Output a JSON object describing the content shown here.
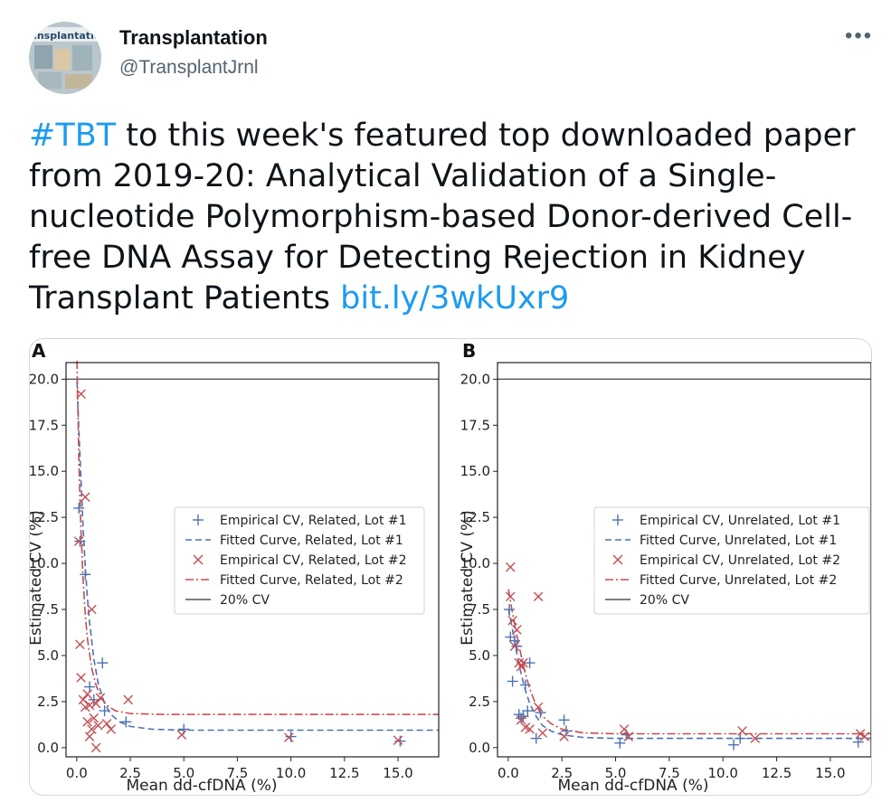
{
  "author": {
    "name": "Transplantation",
    "handle": "@TransplantJrnl",
    "avatar_text": "ransplantatio"
  },
  "tweet": {
    "hashtag": "#TBT",
    "text": " to this week's featured top downloaded paper from 2019-20: Analytical Validation of a Single-nucleotide Polymorphism-based Donor-derived Cell-free DNA Assay for Detecting Rejection in Kidney Transplant Patients ",
    "link": "bit.ly/3wkUxr9"
  },
  "more_label": "•••",
  "colors": {
    "blue": "#4c72b0",
    "red": "#c44e52",
    "gray": "#555555",
    "link": "#1d9bf0"
  },
  "chart_data": [
    {
      "panel": "A",
      "type": "scatter",
      "xlabel": "Mean dd-cfDNA (%)",
      "ylabel": "Estimated CV (%)",
      "xlim": [
        -0.5,
        16.9
      ],
      "ylim": [
        -0.5,
        20.9
      ],
      "xticks": [
        "0.0",
        "2.5",
        "5.0",
        "7.5",
        "10.0",
        "12.5",
        "15.0"
      ],
      "yticks": [
        "0.0",
        "2.5",
        "5.0",
        "7.5",
        "10.0",
        "12.5",
        "15.0",
        "17.5",
        "20.0"
      ],
      "legend": [
        "Empirical CV, Related, Lot #1",
        "Fitted Curve, Related, Lot #1",
        "Empirical CV, Related, Lot #2",
        "Fitted Curve, Related, Lot #2",
        "20% CV"
      ],
      "reference_line": 20,
      "series": [
        {
          "name": "Empirical CV, Related, Lot #1",
          "marker": "plus",
          "points": [
            [
              0.1,
              13.0
            ],
            [
              0.15,
              11.2
            ],
            [
              0.4,
              9.4
            ],
            [
              0.6,
              3.3
            ],
            [
              0.8,
              2.6
            ],
            [
              1.2,
              4.6
            ],
            [
              1.3,
              2.0
            ],
            [
              2.3,
              1.4
            ],
            [
              5.0,
              1.0
            ],
            [
              10.0,
              0.6
            ],
            [
              15.1,
              0.35
            ]
          ]
        },
        {
          "name": "Fitted Curve, Related, Lot #1",
          "kind": "curve",
          "points": [
            [
              0.01,
              19.9
            ],
            [
              0.1,
              17.2
            ],
            [
              0.2,
              14.5
            ],
            [
              0.3,
              11.9
            ],
            [
              0.4,
              9.8
            ],
            [
              0.5,
              8.1
            ],
            [
              0.6,
              6.8
            ],
            [
              0.8,
              4.8
            ],
            [
              1.0,
              3.5
            ],
            [
              1.3,
              2.4
            ],
            [
              1.6,
              1.8
            ],
            [
              2.0,
              1.4
            ],
            [
              2.5,
              1.15
            ],
            [
              3.5,
              1.0
            ],
            [
              5.0,
              0.95
            ],
            [
              8.0,
              0.95
            ],
            [
              12.0,
              0.95
            ],
            [
              16.9,
              0.95
            ]
          ]
        },
        {
          "name": "Empirical CV, Related, Lot #2",
          "marker": "x",
          "points": [
            [
              0.2,
              19.2
            ],
            [
              0.4,
              13.6
            ],
            [
              0.1,
              11.2
            ],
            [
              0.15,
              5.6
            ],
            [
              0.7,
              7.5
            ],
            [
              0.2,
              3.8
            ],
            [
              0.3,
              2.6
            ],
            [
              0.4,
              2.2
            ],
            [
              0.5,
              2.9
            ],
            [
              0.5,
              1.4
            ],
            [
              0.6,
              2.3
            ],
            [
              0.7,
              1.0
            ],
            [
              0.8,
              1.6
            ],
            [
              0.9,
              2.4
            ],
            [
              1.0,
              1.2
            ],
            [
              1.1,
              2.7
            ],
            [
              1.4,
              1.3
            ],
            [
              1.6,
              1.0
            ],
            [
              2.4,
              2.6
            ],
            [
              0.9,
              0.0
            ],
            [
              0.6,
              0.6
            ],
            [
              4.9,
              0.7
            ],
            [
              9.9,
              0.55
            ],
            [
              15.0,
              0.4
            ]
          ]
        },
        {
          "name": "Fitted Curve, Related, Lot #2",
          "kind": "curve",
          "points": [
            [
              0.01,
              21.0
            ],
            [
              0.1,
              15.5
            ],
            [
              0.2,
              11.7
            ],
            [
              0.3,
              9.1
            ],
            [
              0.4,
              7.2
            ],
            [
              0.5,
              5.9
            ],
            [
              0.7,
              4.3
            ],
            [
              0.9,
              3.4
            ],
            [
              1.1,
              2.8
            ],
            [
              1.4,
              2.3
            ],
            [
              1.8,
              2.0
            ],
            [
              2.5,
              1.85
            ],
            [
              4.0,
              1.8
            ],
            [
              8.0,
              1.8
            ],
            [
              16.9,
              1.8
            ]
          ]
        }
      ]
    },
    {
      "panel": "B",
      "type": "scatter",
      "xlabel": "Mean dd-cfDNA (%)",
      "ylabel": "Estimated CV (%)",
      "xlim": [
        -0.5,
        16.9
      ],
      "ylim": [
        -0.5,
        20.9
      ],
      "xticks": [
        "0.0",
        "2.5",
        "5.0",
        "7.5",
        "10.0",
        "12.5",
        "15.0"
      ],
      "yticks": [
        "0.0",
        "2.5",
        "5.0",
        "7.5",
        "10.0",
        "12.5",
        "15.0",
        "17.5",
        "20.0"
      ],
      "legend": [
        "Empirical CV, Unrelated, Lot #1",
        "Fitted Curve, Unrelated, Lot #1",
        "Empirical CV, Unrelated, Lot #2",
        "Fitted Curve, Unrelated, Lot #2",
        "20% CV"
      ],
      "reference_line": 20,
      "series": [
        {
          "name": "Empirical CV, Unrelated, Lot #1",
          "marker": "plus",
          "points": [
            [
              0.05,
              7.5
            ],
            [
              0.1,
              6.0
            ],
            [
              0.2,
              3.6
            ],
            [
              0.3,
              5.8
            ],
            [
              0.4,
              5.5
            ],
            [
              0.5,
              1.8
            ],
            [
              0.6,
              1.6
            ],
            [
              0.7,
              1.7
            ],
            [
              0.8,
              3.4
            ],
            [
              0.9,
              2.0
            ],
            [
              1.0,
              4.6
            ],
            [
              1.3,
              0.5
            ],
            [
              1.5,
              1.9
            ],
            [
              2.6,
              1.5
            ],
            [
              2.7,
              0.9
            ],
            [
              5.2,
              0.25
            ],
            [
              5.5,
              0.7
            ],
            [
              10.5,
              0.15
            ],
            [
              10.8,
              0.5
            ],
            [
              16.3,
              0.3
            ]
          ]
        },
        {
          "name": "Fitted Curve, Unrelated, Lot #1",
          "kind": "curve",
          "points": [
            [
              0.01,
              7.5
            ],
            [
              0.2,
              6.4
            ],
            [
              0.4,
              5.1
            ],
            [
              0.6,
              4.0
            ],
            [
              0.8,
              3.1
            ],
            [
              1.0,
              2.4
            ],
            [
              1.3,
              1.7
            ],
            [
              1.6,
              1.2
            ],
            [
              2.0,
              0.9
            ],
            [
              2.5,
              0.7
            ],
            [
              3.5,
              0.55
            ],
            [
              5.0,
              0.5
            ],
            [
              8.0,
              0.5
            ],
            [
              12.0,
              0.5
            ],
            [
              16.9,
              0.5
            ]
          ]
        },
        {
          "name": "Empirical CV, Unrelated, Lot #2",
          "marker": "x",
          "points": [
            [
              0.1,
              9.8
            ],
            [
              0.1,
              8.2
            ],
            [
              0.2,
              6.9
            ],
            [
              0.3,
              5.5
            ],
            [
              0.4,
              6.4
            ],
            [
              0.5,
              4.6
            ],
            [
              0.6,
              4.4
            ],
            [
              0.7,
              4.6
            ],
            [
              0.6,
              1.5
            ],
            [
              0.8,
              1.1
            ],
            [
              1.0,
              1.0
            ],
            [
              1.4,
              8.2
            ],
            [
              1.4,
              2.2
            ],
            [
              1.6,
              0.8
            ],
            [
              2.6,
              0.6
            ],
            [
              5.4,
              1.0
            ],
            [
              5.6,
              0.6
            ],
            [
              10.9,
              0.9
            ],
            [
              11.5,
              0.5
            ],
            [
              16.4,
              0.75
            ],
            [
              16.6,
              0.6
            ]
          ]
        },
        {
          "name": "Fitted Curve, Unrelated, Lot #2",
          "kind": "curve",
          "points": [
            [
              0.01,
              8.6
            ],
            [
              0.2,
              7.3
            ],
            [
              0.4,
              6.1
            ],
            [
              0.6,
              5.0
            ],
            [
              0.8,
              4.0
            ],
            [
              1.0,
              3.2
            ],
            [
              1.3,
              2.3
            ],
            [
              1.6,
              1.7
            ],
            [
              2.0,
              1.3
            ],
            [
              2.5,
              1.0
            ],
            [
              3.5,
              0.8
            ],
            [
              5.0,
              0.75
            ],
            [
              8.0,
              0.75
            ],
            [
              12.0,
              0.75
            ],
            [
              16.9,
              0.75
            ]
          ]
        }
      ]
    }
  ]
}
